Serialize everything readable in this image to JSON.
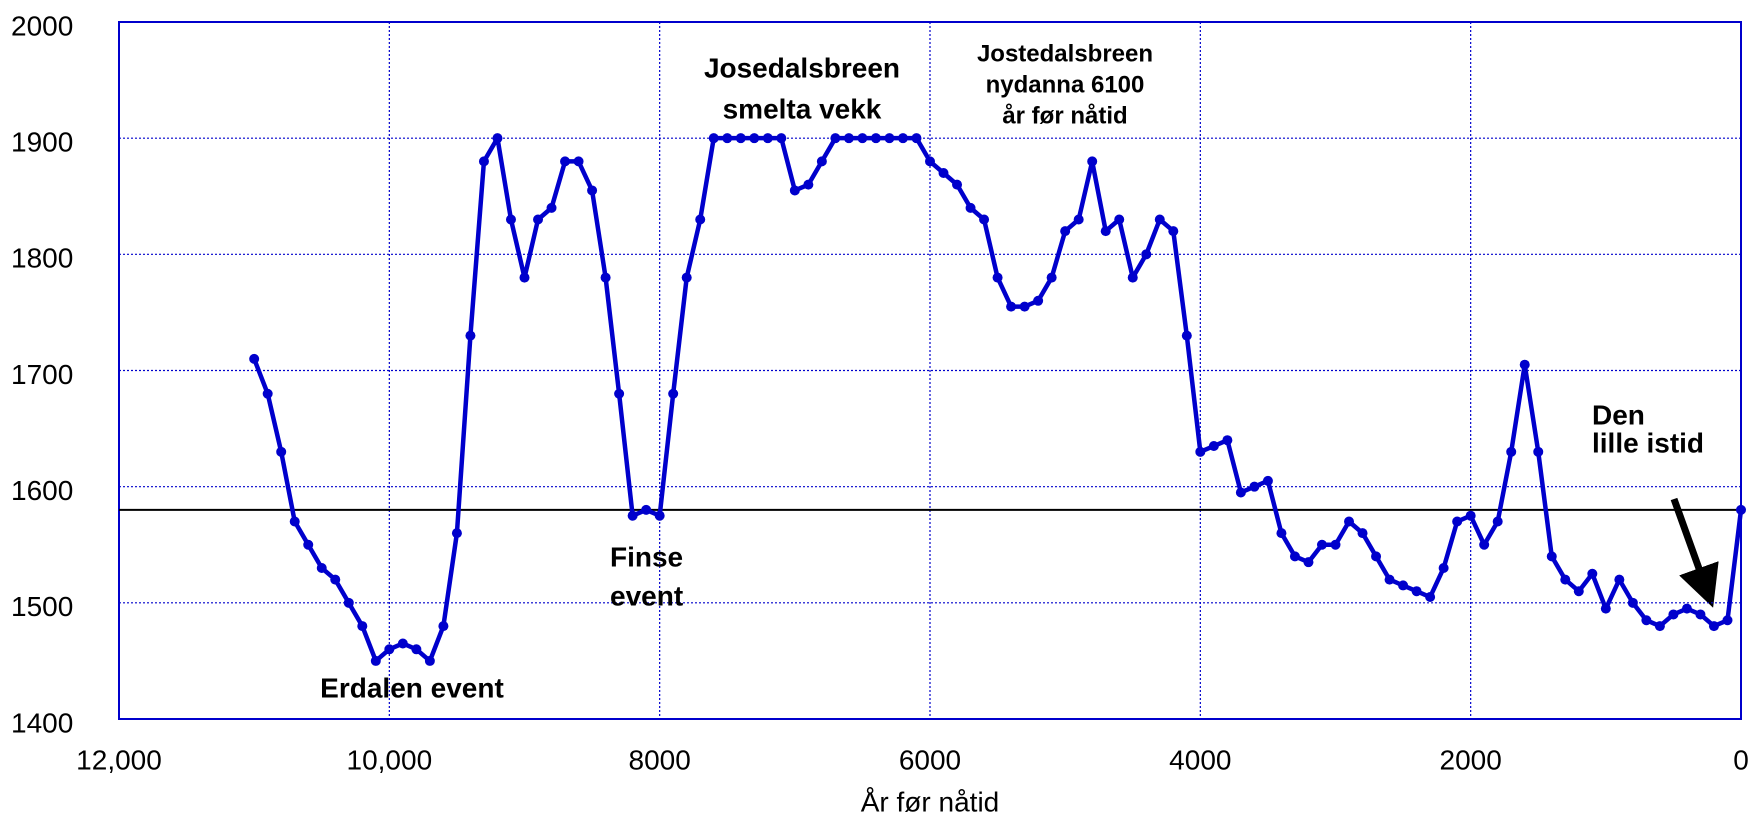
{
  "chart_data": {
    "type": "line",
    "xlabel": "År før nåtid",
    "x": [
      11000,
      10900,
      10800,
      10700,
      10600,
      10500,
      10400,
      10300,
      10200,
      10100,
      10000,
      9900,
      9800,
      9700,
      9600,
      9500,
      9400,
      9300,
      9200,
      9100,
      9000,
      8900,
      8800,
      8700,
      8600,
      8500,
      8400,
      8300,
      8200,
      8100,
      8000,
      7900,
      7800,
      7700,
      7600,
      7500,
      7400,
      7300,
      7200,
      7100,
      7000,
      6900,
      6800,
      6700,
      6600,
      6500,
      6400,
      6300,
      6200,
      6100,
      6000,
      5900,
      5800,
      5700,
      5600,
      5500,
      5400,
      5300,
      5200,
      5100,
      5000,
      4900,
      4800,
      4700,
      4600,
      4500,
      4400,
      4300,
      4200,
      4100,
      4000,
      3900,
      3800,
      3700,
      3600,
      3500,
      3400,
      3300,
      3200,
      3100,
      3000,
      2900,
      2800,
      2700,
      2600,
      2500,
      2400,
      2300,
      2200,
      2100,
      2000,
      1900,
      1800,
      1700,
      1600,
      1500,
      1400,
      1300,
      1200,
      1100,
      1000,
      900,
      800,
      700,
      600,
      500,
      400,
      300,
      200,
      100,
      0
    ],
    "series": [
      {
        "color": "#0000cc",
        "values": [
          1710,
          1680,
          1630,
          1570,
          1550,
          1530,
          1520,
          1500,
          1480,
          1450,
          1460,
          1465,
          1460,
          1450,
          1480,
          1560,
          1730,
          1880,
          1900,
          1830,
          1780,
          1830,
          1840,
          1880,
          1880,
          1855,
          1780,
          1680,
          1575,
          1580,
          1575,
          1680,
          1780,
          1830,
          1900,
          1900,
          1900,
          1900,
          1900,
          1900,
          1855,
          1860,
          1880,
          1900,
          1900,
          1900,
          1900,
          1900,
          1900,
          1900,
          1880,
          1870,
          1860,
          1840,
          1830,
          1780,
          1755,
          1755,
          1760,
          1780,
          1820,
          1830,
          1880,
          1820,
          1830,
          1780,
          1800,
          1830,
          1820,
          1730,
          1630,
          1635,
          1640,
          1595,
          1600,
          1605,
          1560,
          1540,
          1535,
          1550,
          1550,
          1570,
          1560,
          1540,
          1520,
          1515,
          1510,
          1505,
          1530,
          1570,
          1575,
          1550,
          1570,
          1630,
          1705,
          1630,
          1540,
          1520,
          1510,
          1525,
          1495,
          1520,
          1500,
          1485,
          1480,
          1490,
          1495,
          1490,
          1480,
          1485,
          1580
        ]
      }
    ],
    "xlim": [
      12000,
      0
    ],
    "xticks": [
      {
        "value": 12000,
        "label": "12,000"
      },
      {
        "value": 10000,
        "label": "10,000"
      },
      8000,
      6000,
      4000,
      2000,
      0
    ],
    "ylim": [
      1400,
      2000
    ],
    "yticks": [
      1400,
      1500,
      1600,
      1700,
      1800,
      1900,
      2000
    ],
    "grid": true,
    "reference_line": 1580,
    "annotations": [
      [
        "Erdalen event"
      ],
      [
        "Finse",
        "event"
      ],
      [
        "Josedalsbreen",
        "smelta vekk"
      ],
      [
        "Jostedalsbreen",
        "nydanna 6100",
        "år før nåtid"
      ],
      [
        "Den",
        "lille istid"
      ]
    ]
  }
}
